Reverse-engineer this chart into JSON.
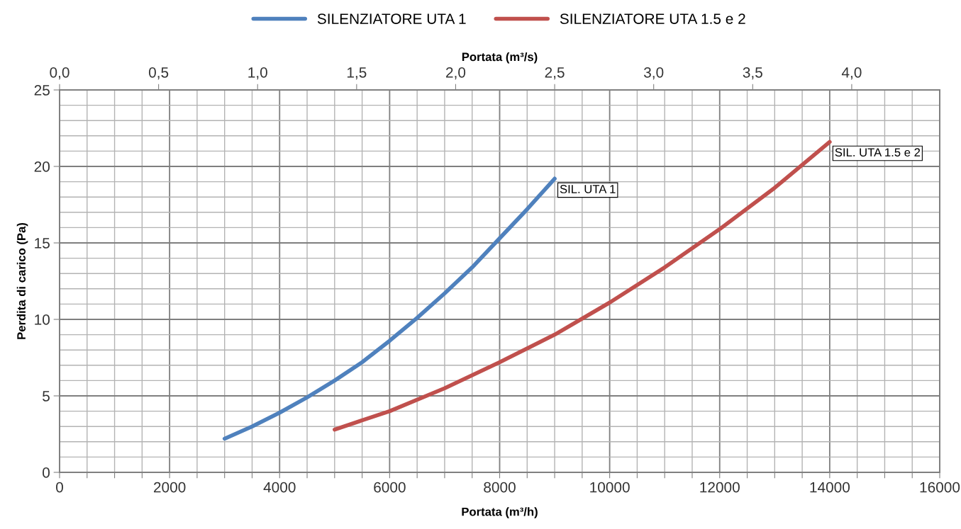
{
  "chart_data": {
    "type": "line",
    "xlabel": "Portata (m³/h)",
    "x2label": "Portata (m³/s)",
    "ylabel": "Perdita di carico (Pa)",
    "xlim": [
      0,
      16000
    ],
    "ylim": [
      0,
      25
    ],
    "x2lim": [
      0,
      4.4444
    ],
    "xticks": [
      0,
      {
        "value": 500,
        "label": null
      },
      {
        "value": 1000,
        "label": null
      },
      {
        "value": 1500,
        "label": null
      },
      2000,
      {
        "value": 2500,
        "label": null
      },
      {
        "value": 3000,
        "label": null
      },
      {
        "value": 3500,
        "label": null
      },
      4000,
      {
        "value": 4500,
        "label": null
      },
      {
        "value": 5000,
        "label": null
      },
      {
        "value": 5500,
        "label": null
      },
      6000,
      {
        "value": 6500,
        "label": null
      },
      {
        "value": 7000,
        "label": null
      },
      {
        "value": 7500,
        "label": null
      },
      8000,
      {
        "value": 8500,
        "label": null
      },
      {
        "value": 9000,
        "label": null
      },
      {
        "value": 9500,
        "label": null
      },
      10000,
      {
        "value": 10500,
        "label": null
      },
      {
        "value": 11000,
        "label": null
      },
      {
        "value": 11500,
        "label": null
      },
      12000,
      {
        "value": 12500,
        "label": null
      },
      {
        "value": 13000,
        "label": null
      },
      {
        "value": 13500,
        "label": null
      },
      14000,
      {
        "value": 14500,
        "label": null
      },
      {
        "value": 15000,
        "label": null
      },
      {
        "value": 15500,
        "label": null
      },
      16000
    ],
    "x2ticks": [
      {
        "value": 0,
        "label": "0,0"
      },
      {
        "value": 0.5,
        "label": "0,5"
      },
      {
        "value": 1.0,
        "label": "1,0"
      },
      {
        "value": 1.5,
        "label": "1,5"
      },
      {
        "value": 2.0,
        "label": "2,0"
      },
      {
        "value": 2.5,
        "label": "2,5"
      },
      {
        "value": 3.0,
        "label": "3,0"
      },
      {
        "value": 3.5,
        "label": "3,5"
      },
      {
        "value": 4.0,
        "label": "4,0"
      }
    ],
    "yticks": [
      0,
      {
        "value": 1,
        "label": null
      },
      {
        "value": 2,
        "label": null
      },
      {
        "value": 3,
        "label": null
      },
      {
        "value": 4,
        "label": null
      },
      5,
      {
        "value": 6,
        "label": null
      },
      {
        "value": 7,
        "label": null
      },
      {
        "value": 8,
        "label": null
      },
      {
        "value": 9,
        "label": null
      },
      10,
      {
        "value": 11,
        "label": null
      },
      {
        "value": 12,
        "label": null
      },
      {
        "value": 13,
        "label": null
      },
      {
        "value": 14,
        "label": null
      },
      15,
      {
        "value": 16,
        "label": null
      },
      {
        "value": 17,
        "label": null
      },
      {
        "value": 18,
        "label": null
      },
      {
        "value": 19,
        "label": null
      },
      20,
      {
        "value": 21,
        "label": null
      },
      {
        "value": 22,
        "label": null
      },
      {
        "value": 23,
        "label": null
      },
      {
        "value": 24,
        "label": null
      },
      25
    ],
    "grid": true,
    "legend": "top",
    "marker": "none",
    "line_style": "solid",
    "series": [
      {
        "name": "SILENZIATORE UTA 1",
        "color": "#4f81bd",
        "x": [
          3000,
          3500,
          4000,
          4500,
          5000,
          5500,
          6000,
          6500,
          7000,
          7500,
          8000,
          8500,
          9000
        ],
        "values": [
          2.2,
          3.0,
          3.9,
          4.9,
          6.0,
          7.2,
          8.6,
          10.1,
          11.7,
          13.4,
          15.3,
          17.2,
          19.2
        ]
      },
      {
        "name": "SILENZIATORE UTA 1.5 e 2",
        "color": "#c0504d",
        "x": [
          5000,
          6000,
          7000,
          8000,
          9000,
          10000,
          11000,
          12000,
          13000,
          14000
        ],
        "values": [
          2.8,
          4.0,
          5.5,
          7.2,
          9.0,
          11.1,
          13.4,
          15.9,
          18.6,
          21.6
        ]
      }
    ],
    "annotations": [
      {
        "text": "SIL. UTA 1",
        "x": 9000,
        "y": 19.2
      },
      {
        "text": "SIL. UTA 1.5 e 2",
        "x": 14000,
        "y": 21.6
      }
    ]
  }
}
